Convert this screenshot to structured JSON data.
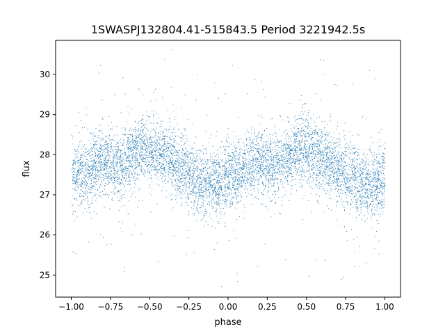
{
  "chart_data": {
    "type": "scatter",
    "title": "1SWASPJ132804.41-515843.5 Period 3221942.5s",
    "xlabel": "phase",
    "ylabel": "flux",
    "xlim": [
      -1.1,
      1.1
    ],
    "ylim": [
      24.45,
      30.85
    ],
    "xticks": [
      -1.0,
      -0.75,
      -0.5,
      -0.25,
      0.0,
      0.25,
      0.5,
      0.75,
      1.0
    ],
    "xtick_labels": [
      "−1.00",
      "−0.75",
      "−0.50",
      "−0.25",
      "0.00",
      "0.25",
      "0.50",
      "0.75",
      "1.00"
    ],
    "yticks": [
      25,
      26,
      27,
      28,
      29,
      30
    ],
    "ytick_labels": [
      "25",
      "26",
      "27",
      "28",
      "29",
      "30"
    ],
    "grid": false,
    "legend": "none",
    "marker_color": "#1f77b4",
    "point_density": "dense",
    "trend_profile": [
      {
        "phase": -1.0,
        "flux": 27.5
      },
      {
        "phase": -0.9,
        "flux": 27.6
      },
      {
        "phase": -0.8,
        "flux": 27.85
      },
      {
        "phase": -0.7,
        "flux": 27.7
      },
      {
        "phase": -0.6,
        "flux": 28.0
      },
      {
        "phase": -0.55,
        "flux": 28.2
      },
      {
        "phase": -0.45,
        "flux": 28.05
      },
      {
        "phase": -0.35,
        "flux": 27.8
      },
      {
        "phase": -0.25,
        "flux": 27.5
      },
      {
        "phase": -0.15,
        "flux": 27.25
      },
      {
        "phase": -0.05,
        "flux": 27.3
      },
      {
        "phase": 0.0,
        "flux": 27.45
      },
      {
        "phase": 0.1,
        "flux": 27.6
      },
      {
        "phase": 0.2,
        "flux": 27.85
      },
      {
        "phase": 0.3,
        "flux": 27.7
      },
      {
        "phase": 0.4,
        "flux": 28.0
      },
      {
        "phase": 0.45,
        "flux": 28.2
      },
      {
        "phase": 0.55,
        "flux": 28.05
      },
      {
        "phase": 0.65,
        "flux": 27.8
      },
      {
        "phase": 0.75,
        "flux": 27.5
      },
      {
        "phase": 0.85,
        "flux": 27.25
      },
      {
        "phase": 0.95,
        "flux": 27.3
      },
      {
        "phase": 1.0,
        "flux": 27.45
      }
    ]
  }
}
